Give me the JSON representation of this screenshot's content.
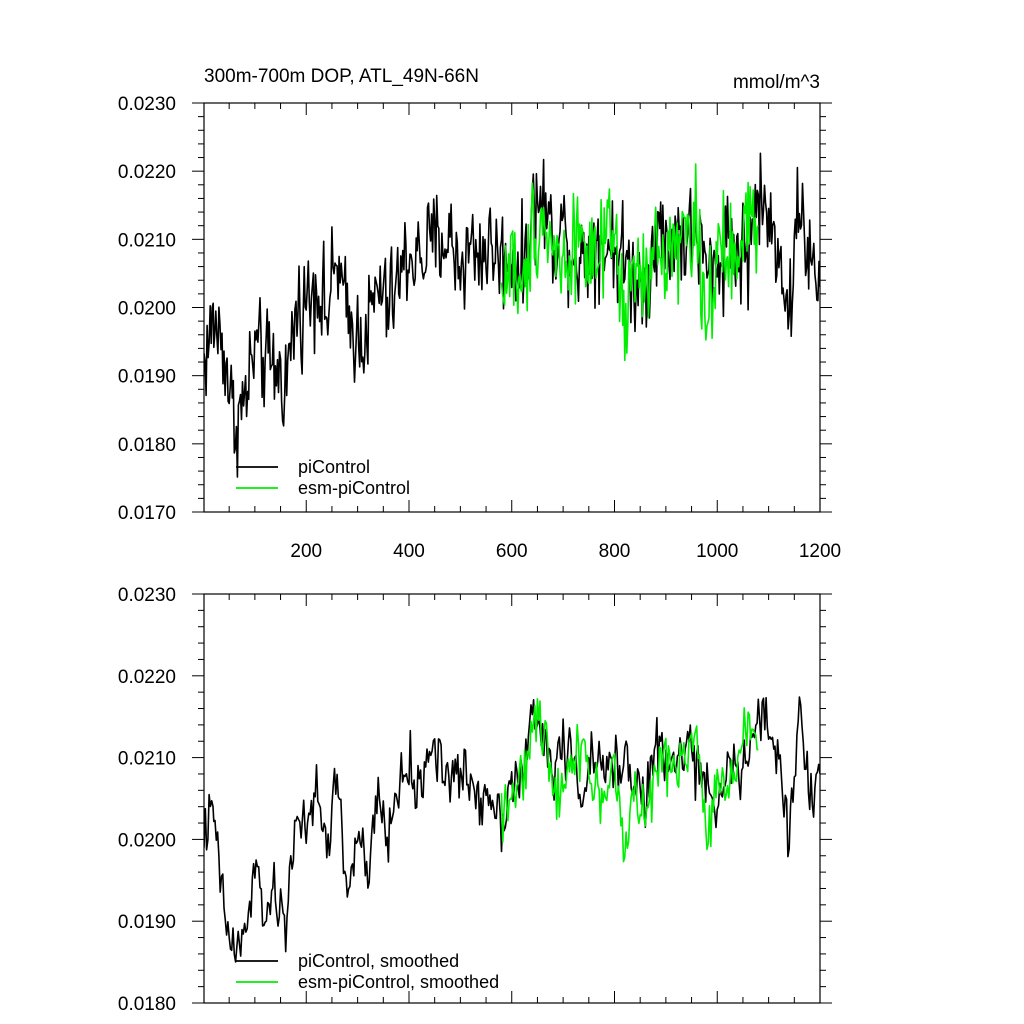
{
  "chart_data": [
    {
      "type": "line",
      "title": "300m-700m DOP, ATL_49N-66N",
      "units_label": "mmol/m^3",
      "xlabel": "",
      "ylabel": "",
      "xlim": [
        1,
        1200
      ],
      "ylim": [
        0.017,
        0.023
      ],
      "x_ticks": [
        200,
        400,
        600,
        800,
        1000,
        1200
      ],
      "x_tick_labels": [
        "200",
        "400",
        "600",
        "800",
        "1000",
        "1200"
      ],
      "y_ticks": [
        0.017,
        0.018,
        0.019,
        0.02,
        0.021,
        0.022,
        0.023
      ],
      "y_tick_labels": [
        "0.0170",
        "0.0180",
        "0.0190",
        "0.0200",
        "0.0210",
        "0.0220",
        "0.0230"
      ],
      "legend_position": "bottom-left",
      "series": [
        {
          "name": "piControl",
          "color": "#000000",
          "x": [
            1,
            20,
            40,
            60,
            80,
            100,
            120,
            140,
            160,
            180,
            200,
            220,
            240,
            260,
            280,
            300,
            320,
            340,
            360,
            380,
            400,
            420,
            440,
            460,
            480,
            500,
            520,
            540,
            560,
            580,
            600,
            620,
            640,
            660,
            680,
            700,
            720,
            740,
            760,
            780,
            800,
            820,
            840,
            860,
            880,
            900,
            920,
            940,
            960,
            980,
            1000,
            1020,
            1040,
            1060,
            1080,
            1100,
            1120,
            1140,
            1160,
            1180,
            1200
          ],
          "values": [
            0.0192,
            0.0198,
            0.0194,
            0.0183,
            0.0186,
            0.0194,
            0.0192,
            0.0191,
            0.0189,
            0.0199,
            0.0201,
            0.0204,
            0.0199,
            0.0207,
            0.0198,
            0.0196,
            0.0197,
            0.0203,
            0.02,
            0.0204,
            0.0208,
            0.0207,
            0.0209,
            0.021,
            0.021,
            0.0206,
            0.0209,
            0.0208,
            0.0209,
            0.0207,
            0.0208,
            0.0205,
            0.0214,
            0.0216,
            0.021,
            0.0212,
            0.0208,
            0.0207,
            0.021,
            0.0209,
            0.0209,
            0.0207,
            0.0204,
            0.0203,
            0.0212,
            0.0209,
            0.0211,
            0.021,
            0.0211,
            0.0205,
            0.0205,
            0.0211,
            0.0208,
            0.0208,
            0.0217,
            0.0212,
            0.021,
            0.0198,
            0.0217,
            0.0206,
            0.0203
          ]
        },
        {
          "name": "esm-piControl",
          "color": "#00ee00",
          "x": [
            580,
            600,
            620,
            640,
            660,
            680,
            700,
            720,
            740,
            760,
            780,
            800,
            820,
            840,
            860,
            880,
            900,
            920,
            940,
            960,
            980,
            1000,
            1020,
            1040,
            1060,
            1080
          ],
          "values": [
            0.0202,
            0.0208,
            0.02,
            0.0212,
            0.0213,
            0.0209,
            0.0206,
            0.021,
            0.0211,
            0.0205,
            0.0208,
            0.0211,
            0.0197,
            0.0206,
            0.0203,
            0.0208,
            0.0208,
            0.021,
            0.0211,
            0.0212,
            0.0199,
            0.0206,
            0.0208,
            0.0206,
            0.0214,
            0.0212
          ]
        }
      ]
    },
    {
      "type": "line",
      "title": "",
      "xlabel": "",
      "ylabel": "",
      "xlim": [
        1,
        1200
      ],
      "ylim": [
        0.018,
        0.023
      ],
      "x_ticks": [
        200,
        400,
        600,
        800,
        1000,
        1200
      ],
      "y_ticks": [
        0.018,
        0.019,
        0.02,
        0.021,
        0.022,
        0.023
      ],
      "y_tick_labels": [
        "0.0180",
        "0.0190",
        "0.0200",
        "0.0210",
        "0.0220",
        "0.0230"
      ],
      "legend_position": "bottom-left",
      "series": [
        {
          "name": "piControl, smoothed",
          "color": "#000000",
          "x": [
            1,
            20,
            40,
            60,
            80,
            100,
            120,
            140,
            160,
            180,
            200,
            220,
            240,
            260,
            280,
            300,
            320,
            340,
            360,
            380,
            400,
            420,
            440,
            460,
            480,
            500,
            520,
            540,
            560,
            580,
            600,
            620,
            640,
            660,
            680,
            700,
            720,
            740,
            760,
            780,
            800,
            820,
            840,
            860,
            880,
            900,
            920,
            940,
            960,
            980,
            1000,
            1020,
            1040,
            1060,
            1080,
            1100,
            1120,
            1140,
            1160,
            1180,
            1200
          ],
          "values": [
            0.0201,
            0.0203,
            0.0191,
            0.0186,
            0.0188,
            0.0196,
            0.0191,
            0.0193,
            0.0189,
            0.0204,
            0.02,
            0.0206,
            0.0199,
            0.0208,
            0.0193,
            0.0201,
            0.0195,
            0.0205,
            0.02,
            0.0207,
            0.0209,
            0.0205,
            0.0212,
            0.021,
            0.0207,
            0.0208,
            0.0207,
            0.0205,
            0.0206,
            0.0202,
            0.0208,
            0.0207,
            0.0215,
            0.0213,
            0.0208,
            0.0212,
            0.0209,
            0.0206,
            0.021,
            0.0208,
            0.0209,
            0.021,
            0.0208,
            0.0204,
            0.0212,
            0.0209,
            0.0209,
            0.0212,
            0.0209,
            0.0205,
            0.0205,
            0.021,
            0.0207,
            0.021,
            0.0215,
            0.0213,
            0.021,
            0.02,
            0.0217,
            0.0204,
            0.0208
          ]
        },
        {
          "name": "esm-piControl, smoothed",
          "color": "#00ee00",
          "x": [
            580,
            600,
            620,
            640,
            660,
            680,
            700,
            720,
            740,
            760,
            780,
            800,
            820,
            840,
            860,
            880,
            900,
            920,
            940,
            960,
            980,
            1000,
            1020,
            1040,
            1060,
            1080
          ],
          "values": [
            0.0204,
            0.0206,
            0.0206,
            0.0214,
            0.0214,
            0.0208,
            0.0206,
            0.0211,
            0.0212,
            0.0205,
            0.0206,
            0.0209,
            0.0198,
            0.0207,
            0.0202,
            0.0208,
            0.0209,
            0.021,
            0.0211,
            0.0212,
            0.02,
            0.0206,
            0.0208,
            0.0209,
            0.0216,
            0.0211
          ]
        }
      ]
    }
  ]
}
